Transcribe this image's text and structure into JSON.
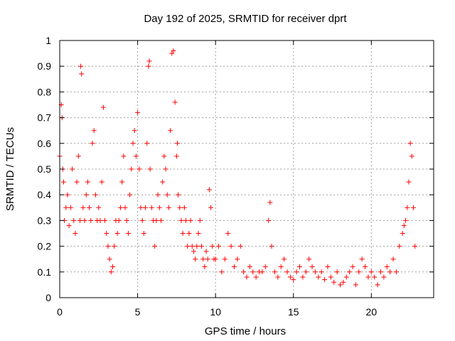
{
  "chart_data": {
    "type": "scatter",
    "title": "Day 192 of 2025, SRMTID for receiver dprt",
    "xlabel": "GPS time / hours",
    "ylabel": "SRMTID / TECUs",
    "xlim": [
      0,
      24
    ],
    "ylim": [
      0,
      1
    ],
    "xticks": [
      0,
      5,
      10,
      15,
      20
    ],
    "xtick_labels": [
      "0",
      "5",
      "10",
      "15",
      "20"
    ],
    "yticks": [
      0,
      0.1,
      0.2,
      0.3,
      0.4,
      0.5,
      0.6,
      0.7,
      0.8,
      0.9,
      1
    ],
    "ytick_labels": [
      "0",
      "0.1",
      "0.2",
      "0.3",
      "0.4",
      "0.5",
      "0.6",
      "0.7",
      "0.8",
      "0.9",
      "1"
    ],
    "grid": true,
    "marker": "+",
    "series": [
      {
        "name": "SRMTID",
        "color": "#ff0000",
        "x": [
          0.0,
          0.1,
          0.15,
          0.2,
          0.25,
          0.3,
          0.4,
          0.5,
          0.6,
          0.7,
          0.8,
          0.9,
          1.0,
          1.1,
          1.2,
          1.3,
          1.35,
          1.4,
          1.5,
          1.6,
          1.7,
          1.8,
          1.9,
          2.0,
          2.1,
          2.2,
          2.3,
          2.4,
          2.5,
          2.6,
          2.7,
          2.8,
          2.9,
          3.0,
          3.1,
          3.2,
          3.3,
          3.4,
          3.5,
          3.6,
          3.7,
          3.8,
          3.9,
          4.0,
          4.1,
          4.2,
          4.3,
          4.4,
          4.5,
          4.6,
          4.7,
          4.8,
          4.9,
          5.0,
          5.1,
          5.2,
          5.3,
          5.4,
          5.5,
          5.6,
          5.7,
          5.75,
          5.8,
          5.9,
          6.0,
          6.1,
          6.2,
          6.3,
          6.4,
          6.5,
          6.6,
          6.7,
          6.8,
          6.9,
          7.0,
          7.1,
          7.2,
          7.3,
          7.4,
          7.5,
          7.55,
          7.6,
          7.7,
          7.8,
          7.9,
          8.0,
          8.1,
          8.2,
          8.3,
          8.4,
          8.5,
          8.6,
          8.7,
          8.8,
          8.9,
          9.0,
          9.1,
          9.2,
          9.3,
          9.4,
          9.5,
          9.6,
          9.7,
          9.8,
          9.9,
          10.0,
          10.2,
          10.4,
          10.6,
          10.8,
          11.0,
          11.2,
          11.4,
          11.6,
          11.8,
          12.0,
          12.2,
          12.4,
          12.6,
          12.8,
          13.0,
          13.2,
          13.4,
          13.5,
          13.6,
          13.8,
          14.0,
          14.2,
          14.4,
          14.6,
          14.8,
          15.0,
          15.2,
          15.4,
          15.6,
          15.8,
          16.0,
          16.2,
          16.4,
          16.6,
          16.8,
          17.0,
          17.2,
          17.4,
          17.6,
          17.8,
          18.0,
          18.2,
          18.4,
          18.6,
          18.8,
          19.0,
          19.2,
          19.4,
          19.6,
          19.8,
          20.0,
          20.2,
          20.4,
          20.6,
          20.8,
          21.0,
          21.2,
          21.4,
          21.6,
          21.8,
          22.0,
          22.1,
          22.2,
          22.3,
          22.4,
          22.5,
          22.6,
          22.7,
          22.8
        ],
        "y": [
          0.55,
          0.75,
          0.7,
          0.5,
          0.45,
          0.3,
          0.35,
          0.4,
          0.28,
          0.35,
          0.5,
          0.3,
          0.25,
          0.45,
          0.55,
          0.3,
          0.9,
          0.87,
          0.35,
          0.3,
          0.4,
          0.45,
          0.35,
          0.3,
          0.6,
          0.65,
          0.4,
          0.3,
          0.35,
          0.3,
          0.45,
          0.74,
          0.3,
          0.25,
          0.2,
          0.15,
          0.1,
          0.12,
          0.2,
          0.3,
          0.25,
          0.3,
          0.35,
          0.45,
          0.55,
          0.35,
          0.3,
          0.25,
          0.4,
          0.5,
          0.6,
          0.65,
          0.55,
          0.72,
          0.5,
          0.35,
          0.3,
          0.25,
          0.35,
          0.6,
          0.9,
          0.92,
          0.5,
          0.35,
          0.3,
          0.2,
          0.3,
          0.4,
          0.35,
          0.3,
          0.45,
          0.55,
          0.5,
          0.4,
          0.35,
          0.65,
          0.95,
          0.96,
          0.76,
          0.55,
          0.6,
          0.4,
          0.35,
          0.3,
          0.25,
          0.35,
          0.3,
          0.2,
          0.25,
          0.3,
          0.2,
          0.18,
          0.15,
          0.2,
          0.25,
          0.3,
          0.2,
          0.15,
          0.12,
          0.18,
          0.15,
          0.42,
          0.35,
          0.2,
          0.15,
          0.15,
          0.2,
          0.1,
          0.15,
          0.25,
          0.2,
          0.12,
          0.15,
          0.2,
          0.1,
          0.08,
          0.12,
          0.1,
          0.08,
          0.1,
          0.1,
          0.12,
          0.3,
          0.37,
          0.2,
          0.1,
          0.08,
          0.12,
          0.15,
          0.1,
          0.08,
          0.07,
          0.1,
          0.12,
          0.08,
          0.1,
          0.15,
          0.12,
          0.1,
          0.08,
          0.1,
          0.07,
          0.12,
          0.08,
          0.06,
          0.1,
          0.05,
          0.06,
          0.08,
          0.1,
          0.12,
          0.05,
          0.1,
          0.15,
          0.12,
          0.08,
          0.1,
          0.08,
          0.05,
          0.1,
          0.08,
          0.12,
          0.1,
          0.15,
          0.1,
          0.2,
          0.25,
          0.28,
          0.3,
          0.35,
          0.45,
          0.6,
          0.55,
          0.35,
          0.2
        ]
      }
    ]
  }
}
